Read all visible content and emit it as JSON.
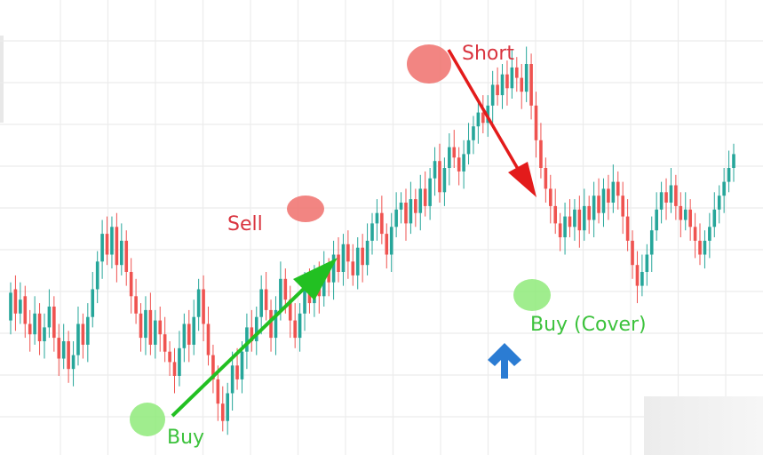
{
  "chart_data": {
    "type": "candlestick",
    "title": "",
    "xlabel": "",
    "ylabel": "",
    "grid": true,
    "x_count": 151,
    "ylim": [
      0,
      100
    ],
    "up_color": "#26a69a",
    "down_color": "#ef5350",
    "candles": [
      [
        26,
        34
      ],
      [
        35,
        28
      ],
      [
        28,
        32
      ],
      [
        33,
        25
      ],
      [
        25,
        22
      ],
      [
        22,
        28
      ],
      [
        28,
        20
      ],
      [
        20,
        24
      ],
      [
        24,
        30
      ],
      [
        30,
        21
      ],
      [
        21,
        15
      ],
      [
        15,
        20
      ],
      [
        20,
        12
      ],
      [
        12,
        16
      ],
      [
        16,
        25
      ],
      [
        25,
        19
      ],
      [
        19,
        27
      ],
      [
        27,
        35
      ],
      [
        35,
        43
      ],
      [
        43,
        51
      ],
      [
        51,
        45
      ],
      [
        45,
        53
      ],
      [
        53,
        42
      ],
      [
        42,
        49
      ],
      [
        49,
        40
      ],
      [
        40,
        33
      ],
      [
        33,
        28
      ],
      [
        28,
        21
      ],
      [
        21,
        29
      ],
      [
        29,
        19
      ],
      [
        19,
        26
      ],
      [
        26,
        22
      ],
      [
        22,
        17
      ],
      [
        17,
        14
      ],
      [
        14,
        10
      ],
      [
        10,
        18
      ],
      [
        18,
        25
      ],
      [
        25,
        19
      ],
      [
        19,
        27
      ],
      [
        27,
        35
      ],
      [
        35,
        25
      ],
      [
        25,
        16
      ],
      [
        16,
        9
      ],
      [
        9,
        2
      ],
      [
        2,
        -3
      ],
      [
        -3,
        5
      ],
      [
        5,
        13
      ],
      [
        13,
        9
      ],
      [
        9,
        17
      ],
      [
        17,
        24
      ],
      [
        24,
        20
      ],
      [
        20,
        27
      ],
      [
        27,
        35
      ],
      [
        35,
        29
      ],
      [
        29,
        21
      ],
      [
        21,
        29
      ],
      [
        29,
        38
      ],
      [
        38,
        32
      ],
      [
        32,
        26
      ],
      [
        26,
        21
      ],
      [
        21,
        28
      ],
      [
        28,
        36
      ],
      [
        36,
        31
      ],
      [
        31,
        39
      ],
      [
        39,
        33
      ],
      [
        33,
        41
      ],
      [
        41,
        37
      ],
      [
        37,
        45
      ],
      [
        45,
        40
      ],
      [
        40,
        48
      ],
      [
        48,
        43
      ],
      [
        43,
        39
      ],
      [
        39,
        47
      ],
      [
        47,
        42
      ],
      [
        42,
        49
      ],
      [
        49,
        54
      ],
      [
        54,
        57
      ],
      [
        57,
        51
      ],
      [
        51,
        45
      ],
      [
        45,
        53
      ],
      [
        53,
        58
      ],
      [
        58,
        60
      ],
      [
        60,
        54
      ],
      [
        54,
        61
      ],
      [
        61,
        57
      ],
      [
        57,
        64
      ],
      [
        64,
        59
      ],
      [
        59,
        67
      ],
      [
        67,
        72
      ],
      [
        72,
        63
      ],
      [
        63,
        70
      ],
      [
        70,
        76
      ],
      [
        76,
        73
      ],
      [
        73,
        69
      ],
      [
        69,
        74
      ],
      [
        74,
        78
      ],
      [
        78,
        82
      ],
      [
        82,
        86
      ],
      [
        86,
        83
      ],
      [
        83,
        88
      ],
      [
        88,
        94
      ],
      [
        94,
        91
      ],
      [
        91,
        97
      ],
      [
        97,
        93
      ],
      [
        93,
        99
      ],
      [
        99,
        96
      ],
      [
        96,
        92
      ],
      [
        92,
        100
      ],
      [
        100,
        88
      ],
      [
        88,
        78
      ],
      [
        78,
        70
      ],
      [
        70,
        64
      ],
      [
        64,
        59
      ],
      [
        59,
        54
      ],
      [
        54,
        50
      ],
      [
        50,
        56
      ],
      [
        56,
        53
      ],
      [
        53,
        58
      ],
      [
        58,
        52
      ],
      [
        52,
        59
      ],
      [
        59,
        55
      ],
      [
        55,
        62
      ],
      [
        62,
        57
      ],
      [
        57,
        64
      ],
      [
        64,
        60
      ],
      [
        60,
        66
      ],
      [
        66,
        62
      ],
      [
        62,
        56
      ],
      [
        56,
        49
      ],
      [
        49,
        42
      ],
      [
        42,
        36
      ],
      [
        36,
        40
      ],
      [
        40,
        45
      ],
      [
        45,
        52
      ],
      [
        52,
        58
      ],
      [
        58,
        63
      ],
      [
        63,
        60
      ],
      [
        60,
        65
      ],
      [
        65,
        59
      ],
      [
        59,
        55
      ],
      [
        55,
        58
      ],
      [
        58,
        53
      ],
      [
        53,
        49
      ],
      [
        49,
        45
      ],
      [
        45,
        49
      ],
      [
        49,
        53
      ],
      [
        53,
        58
      ],
      [
        58,
        62
      ],
      [
        62,
        66
      ],
      [
        66,
        70
      ],
      [
        70,
        74
      ]
    ]
  },
  "annotations": {
    "buy_label": "Buy",
    "sell_label": "Sell",
    "short_label": "Short",
    "buy_cover_label": "Buy (Cover)"
  },
  "colors": {
    "green_arrow": "#22c022",
    "red_arrow": "#e31b1b",
    "blue_arrow": "#2b7cd3",
    "marker_green": "#8fea7a",
    "marker_red": "#f0706c"
  },
  "icons": {
    "blue_arrow": "up-arrow-icon"
  }
}
